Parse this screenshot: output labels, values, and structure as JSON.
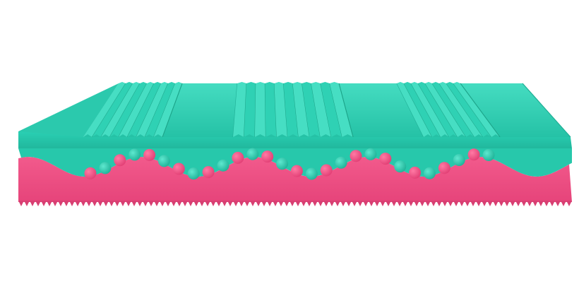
{
  "image": {
    "subject": "mattress-cross-section",
    "colors": {
      "background": "#ffffff",
      "top_foam": "#2fd1b4",
      "top_foam_light": "#4fe3c8",
      "top_foam_shadow": "#1fae95",
      "bottom_foam": "#ee4f84",
      "bottom_foam_shadow": "#d23a6e"
    },
    "layers": [
      {
        "name": "top-foam-layer",
        "color": "#2fd1b4"
      },
      {
        "name": "bottom-foam-layer",
        "color": "#ee4f84"
      }
    ],
    "top_surface_zones": [
      {
        "type": "ribbed",
        "ribs": 9
      },
      {
        "type": "flat"
      },
      {
        "type": "ribbed",
        "ribs": 11
      },
      {
        "type": "flat"
      },
      {
        "type": "ribbed",
        "ribs": 9
      },
      {
        "type": "flat"
      }
    ],
    "wave_cells": {
      "count": 28,
      "pattern": [
        "pink",
        "teal"
      ]
    }
  }
}
